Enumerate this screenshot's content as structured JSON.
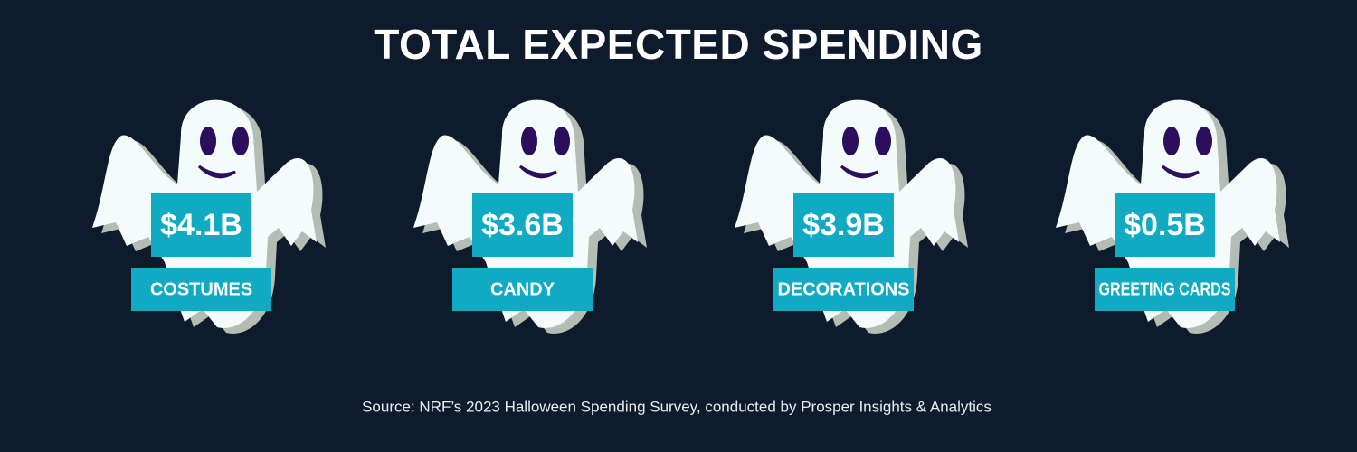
{
  "title": "TOTAL EXPECTED SPENDING",
  "items": [
    {
      "value": "$4.1B",
      "label": "COSTUMES"
    },
    {
      "value": "$3.6B",
      "label": "CANDY"
    },
    {
      "value": "$3.9B",
      "label": "DECORATIONS"
    },
    {
      "value": "$0.5B",
      "label": "GREETING CARDS"
    }
  ],
  "source": "Source: NRF’s 2023 Halloween Spending Survey, conducted by Prosper Insights & Analytics"
}
